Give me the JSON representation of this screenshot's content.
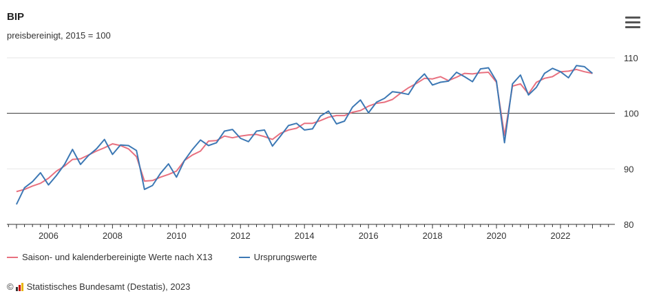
{
  "colors": {
    "seasonal": "#e8707f",
    "original": "#3c78b4",
    "baseline": "#333333",
    "grid": "#e6e6e6",
    "axis": "#333333"
  },
  "menu": {
    "icon": "hamburger-menu-icon"
  },
  "credits": {
    "copyright": "©",
    "text": "Statistisches Bundesamt (Destatis), 2023"
  },
  "chart_data": {
    "type": "line",
    "title": "BIP",
    "subtitle": "preisbereinigt, 2015 = 100",
    "xlabel": "",
    "ylabel": "",
    "xlim": [
      2004.7,
      2023.7
    ],
    "ylim": [
      80,
      110
    ],
    "y_ticks": [
      80,
      90,
      100,
      110
    ],
    "x_ticks": [
      2006,
      2008,
      2010,
      2012,
      2014,
      2016,
      2018,
      2020,
      2022
    ],
    "x_tick_labels": [
      "2006",
      "2008",
      "2010",
      "2012",
      "2014",
      "2016",
      "2018",
      "2020",
      "2022"
    ],
    "y_tick_labels": [
      "80",
      "90",
      "100",
      "110"
    ],
    "reference_line": 100,
    "grid": true,
    "legend_position": "bottom-left",
    "x": [
      2005.0,
      2005.25,
      2005.5,
      2005.75,
      2006.0,
      2006.25,
      2006.5,
      2006.75,
      2007.0,
      2007.25,
      2007.5,
      2007.75,
      2008.0,
      2008.25,
      2008.5,
      2008.75,
      2009.0,
      2009.25,
      2009.5,
      2009.75,
      2010.0,
      2010.25,
      2010.5,
      2010.75,
      2011.0,
      2011.25,
      2011.5,
      2011.75,
      2012.0,
      2012.25,
      2012.5,
      2012.75,
      2013.0,
      2013.25,
      2013.5,
      2013.75,
      2014.0,
      2014.25,
      2014.5,
      2014.75,
      2015.0,
      2015.25,
      2015.5,
      2015.75,
      2016.0,
      2016.25,
      2016.5,
      2016.75,
      2017.0,
      2017.25,
      2017.5,
      2017.75,
      2018.0,
      2018.25,
      2018.5,
      2018.75,
      2019.0,
      2019.25,
      2019.5,
      2019.75,
      2020.0,
      2020.25,
      2020.5,
      2020.75,
      2021.0,
      2021.25,
      2021.5,
      2021.75,
      2022.0,
      2022.25,
      2022.5,
      2022.75,
      2023.0
    ],
    "series": [
      {
        "name": "Saison- und kalenderbereinigte Werte nach X13",
        "values": [
          85.9,
          86.3,
          86.9,
          87.4,
          88.3,
          89.6,
          90.5,
          91.7,
          91.8,
          92.5,
          93.2,
          93.8,
          94.5,
          94.2,
          93.6,
          92.2,
          87.8,
          87.9,
          88.5,
          89.0,
          89.6,
          91.5,
          92.5,
          93.2,
          95.0,
          95.1,
          95.9,
          95.6,
          95.9,
          96.1,
          96.2,
          95.8,
          95.3,
          96.4,
          97.0,
          97.3,
          98.2,
          98.2,
          98.7,
          99.3,
          99.6,
          99.6,
          100.2,
          100.5,
          101.3,
          101.8,
          102.0,
          102.5,
          103.6,
          104.6,
          105.4,
          106.3,
          106.2,
          106.6,
          105.9,
          106.5,
          107.2,
          107.1,
          107.3,
          107.4,
          105.6,
          96.0,
          104.9,
          105.3,
          103.5,
          105.6,
          106.3,
          106.6,
          107.5,
          107.6,
          107.9,
          107.5,
          107.2
        ]
      },
      {
        "name": "Ursprungswerte",
        "values": [
          83.6,
          86.6,
          87.7,
          89.3,
          87.1,
          88.8,
          90.8,
          93.5,
          90.8,
          92.4,
          93.6,
          95.3,
          92.6,
          94.3,
          94.2,
          93.3,
          86.3,
          87.0,
          89.2,
          90.9,
          88.5,
          91.5,
          93.5,
          95.2,
          94.2,
          94.7,
          96.8,
          97.1,
          95.5,
          94.9,
          96.8,
          97.0,
          94.1,
          95.9,
          97.8,
          98.2,
          97.0,
          97.2,
          99.5,
          100.4,
          98.1,
          98.6,
          101.1,
          102.4,
          100.1,
          102.0,
          102.7,
          103.9,
          103.7,
          103.4,
          105.7,
          107.1,
          105.1,
          105.6,
          105.8,
          107.4,
          106.6,
          105.7,
          108.0,
          108.2,
          105.8,
          94.7,
          105.3,
          106.9,
          103.3,
          104.7,
          107.2,
          108.1,
          107.5,
          106.4,
          108.6,
          108.4,
          107.2
        ]
      }
    ]
  }
}
